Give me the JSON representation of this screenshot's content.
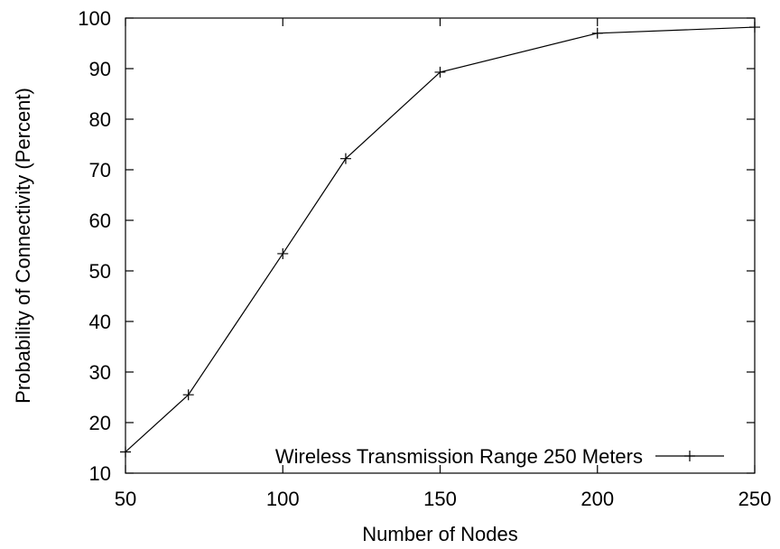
{
  "chart_data": {
    "type": "line",
    "title": "",
    "xlabel": "Number of Nodes",
    "ylabel": "Probability of Connectivity (Percent)",
    "xlim": [
      50,
      250
    ],
    "ylim": [
      10,
      100
    ],
    "xticks": [
      50,
      100,
      150,
      200,
      250
    ],
    "yticks": [
      10,
      20,
      30,
      40,
      50,
      60,
      70,
      80,
      90,
      100
    ],
    "grid": false,
    "legend_position": "bottom-right",
    "series": [
      {
        "name": "Wireless Transmission Range 250 Meters",
        "color": "#000000",
        "marker": "plus",
        "x": [
          50,
          70,
          100,
          120,
          150,
          200,
          250
        ],
        "y": [
          14.2,
          25.5,
          53.4,
          72.2,
          89.3,
          97.0,
          98.2
        ]
      }
    ]
  }
}
